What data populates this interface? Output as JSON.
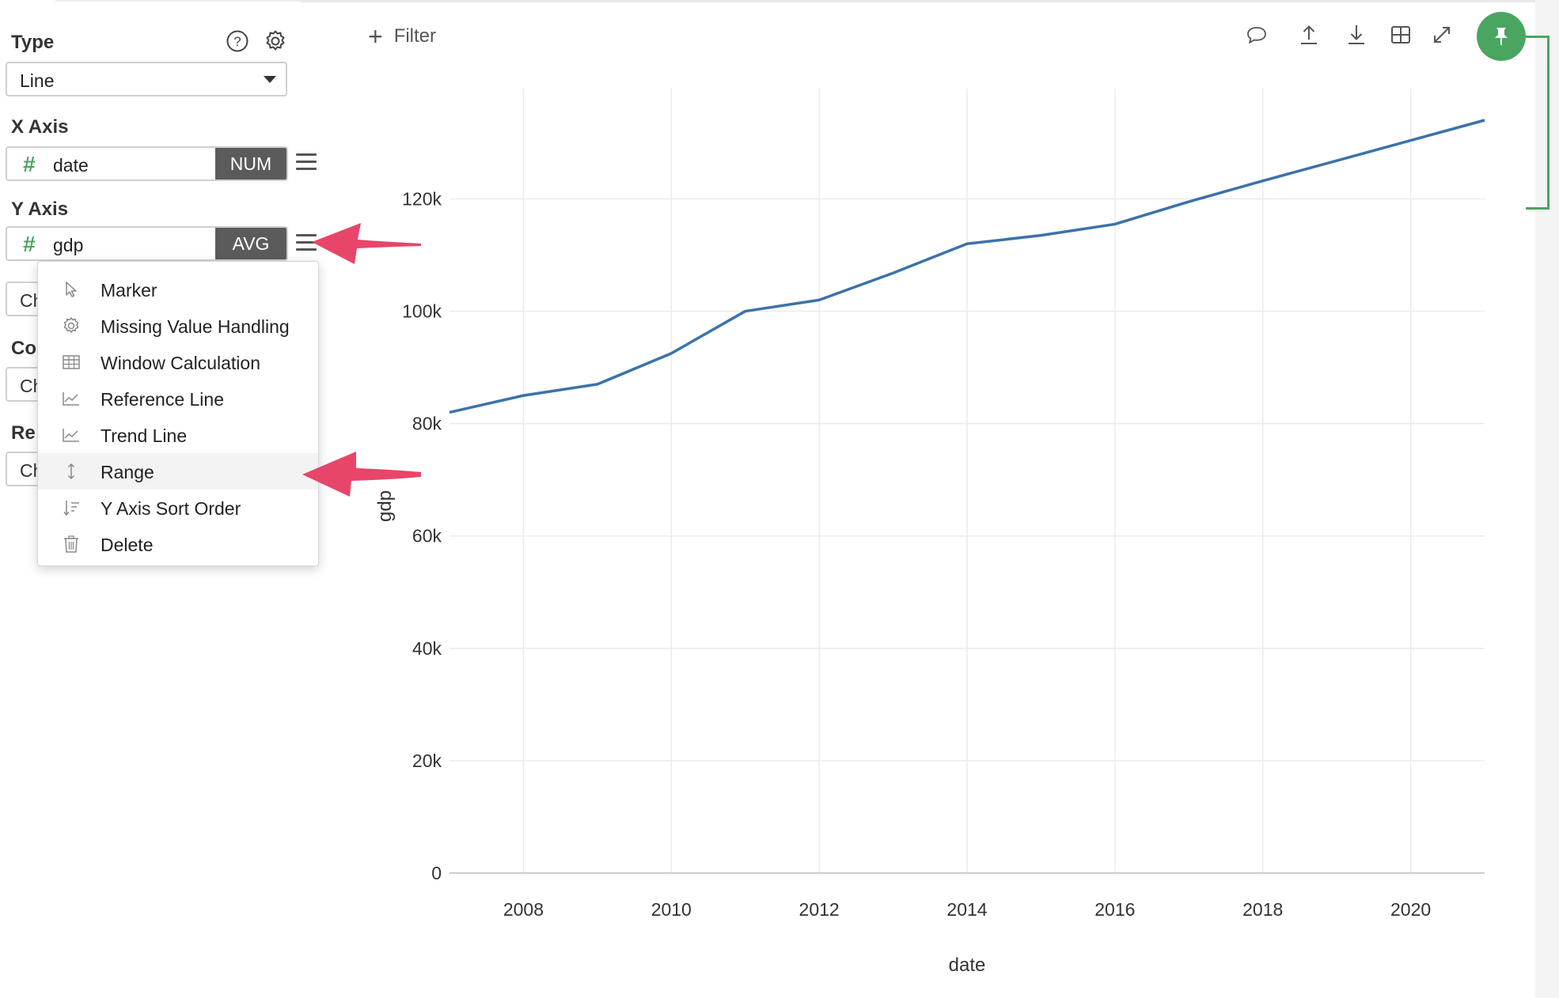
{
  "sidebar": {
    "type_label": "Type",
    "chart_type": "Line",
    "x_axis_label": "X Axis",
    "x_field": {
      "name": "date",
      "aggregation": "NUM"
    },
    "y_axis_label": "Y Axis",
    "y_field": {
      "name": "gdp",
      "aggregation": "AVG"
    },
    "hidden_rows": [
      {
        "label": "",
        "value": "Ch"
      },
      {
        "label": "Co",
        "value": "Ch"
      },
      {
        "label": "Re",
        "value": "Ch"
      }
    ]
  },
  "menu": {
    "items": [
      {
        "label": "Marker",
        "icon": "cursor-icon"
      },
      {
        "label": "Missing Value Handling",
        "icon": "gear-icon"
      },
      {
        "label": "Window Calculation",
        "icon": "table-icon"
      },
      {
        "label": "Reference Line",
        "icon": "chart-line-icon"
      },
      {
        "label": "Trend Line",
        "icon": "chart-line-icon"
      },
      {
        "label": "Range",
        "icon": "vertical-arrows-icon",
        "highlighted": true
      },
      {
        "label": "Y Axis Sort Order",
        "icon": "sort-icon"
      },
      {
        "label": "Delete",
        "icon": "trash-icon"
      }
    ]
  },
  "toolbar": {
    "filter_label": "Filter",
    "icons": [
      "comment-icon",
      "upload-icon",
      "download-icon",
      "table-icon",
      "expand-icon",
      "pin-icon"
    ]
  },
  "colors": {
    "accent_green": "#4aa561",
    "line_blue": "#3b72aa",
    "arrow_pink": "#e8456b",
    "agg_badge": "#5b5b5b"
  },
  "chart_data": {
    "type": "line",
    "xlabel": "date",
    "ylabel": "gdp",
    "x": [
      2007,
      2008,
      2009,
      2010,
      2011,
      2012,
      2013,
      2014,
      2015,
      2016,
      2017,
      2018,
      2019,
      2020,
      2021
    ],
    "series": [
      {
        "values": [
          82000,
          85000,
          87000,
          92500,
          100000,
          102000,
          106800,
          112000,
          113500,
          115500,
          119500,
          123200,
          126800,
          130400,
          134000
        ]
      }
    ],
    "xlim": [
      2007,
      2021
    ],
    "ylim": [
      0,
      134000
    ],
    "x_ticks": [
      2008,
      2010,
      2012,
      2014,
      2016,
      2018,
      2020
    ],
    "y_ticks": [
      0,
      20000,
      40000,
      60000,
      80000,
      100000,
      120000
    ],
    "y_tick_labels": [
      "0",
      "20k",
      "40k",
      "60k",
      "80k",
      "100k",
      "120k"
    ],
    "grid": true
  }
}
